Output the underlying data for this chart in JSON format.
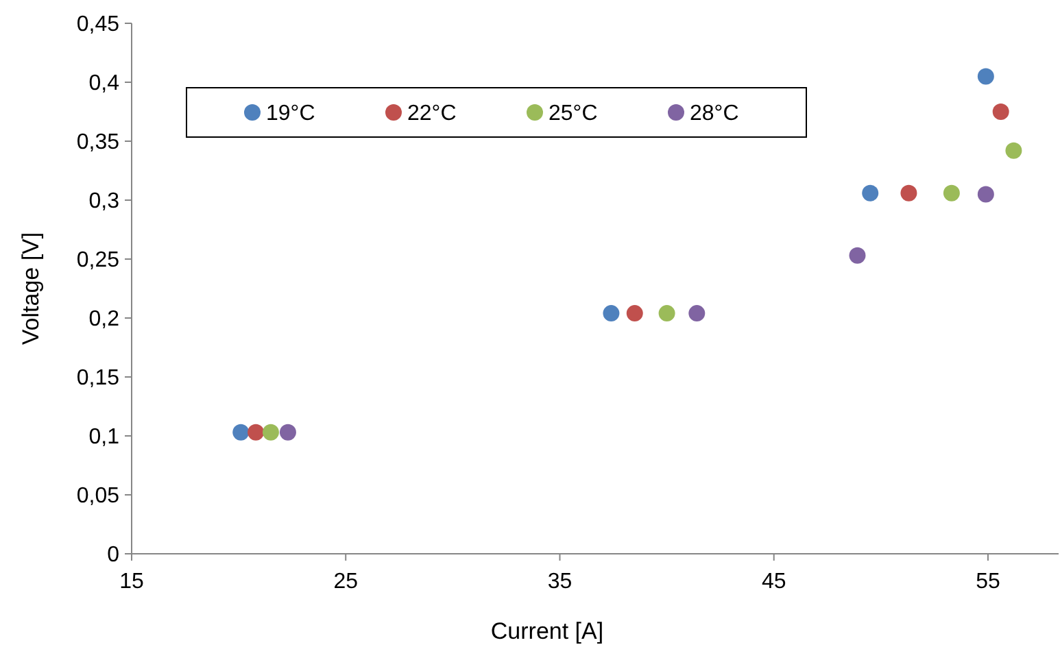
{
  "chart_data": {
    "type": "scatter",
    "xlabel": "Current [A]",
    "ylabel": "Voltage [V]",
    "xlim": [
      15,
      58.3
    ],
    "xticks": [
      15,
      25,
      35,
      45,
      55
    ],
    "ylim": [
      0,
      0.45
    ],
    "yticks": [
      {
        "value": 0,
        "label": "0"
      },
      {
        "value": 0.05,
        "label": "0,05"
      },
      {
        "value": 0.1,
        "label": "0,1"
      },
      {
        "value": 0.15,
        "label": "0,15"
      },
      {
        "value": 0.2,
        "label": "0,2"
      },
      {
        "value": 0.25,
        "label": "0,25"
      },
      {
        "value": 0.3,
        "label": "0,3"
      },
      {
        "value": 0.35,
        "label": "0,35"
      },
      {
        "value": 0.4,
        "label": "0,4"
      },
      {
        "value": 0.45,
        "label": "0,45"
      }
    ],
    "grid": false,
    "legend": "top left",
    "marker": "circle",
    "series": [
      {
        "name": "19°C",
        "color": "#4f81bd",
        "x": [
          20.1,
          37.4,
          49.5,
          54.9
        ],
        "values": [
          0.103,
          0.204,
          0.306,
          0.405
        ]
      },
      {
        "name": "22°C",
        "color": "#c0504d",
        "x": [
          20.8,
          38.5,
          51.3,
          55.6
        ],
        "values": [
          0.103,
          0.204,
          0.306,
          0.375
        ]
      },
      {
        "name": "25°C",
        "color": "#9bbb59",
        "x": [
          21.5,
          40.0,
          53.3,
          56.2
        ],
        "values": [
          0.103,
          0.204,
          0.306,
          0.342
        ]
      },
      {
        "name": "28°C",
        "color": "#8064a2",
        "x": [
          22.3,
          41.4,
          48.9,
          54.9
        ],
        "values": [
          0.103,
          0.204,
          0.253,
          0.305
        ]
      }
    ]
  }
}
